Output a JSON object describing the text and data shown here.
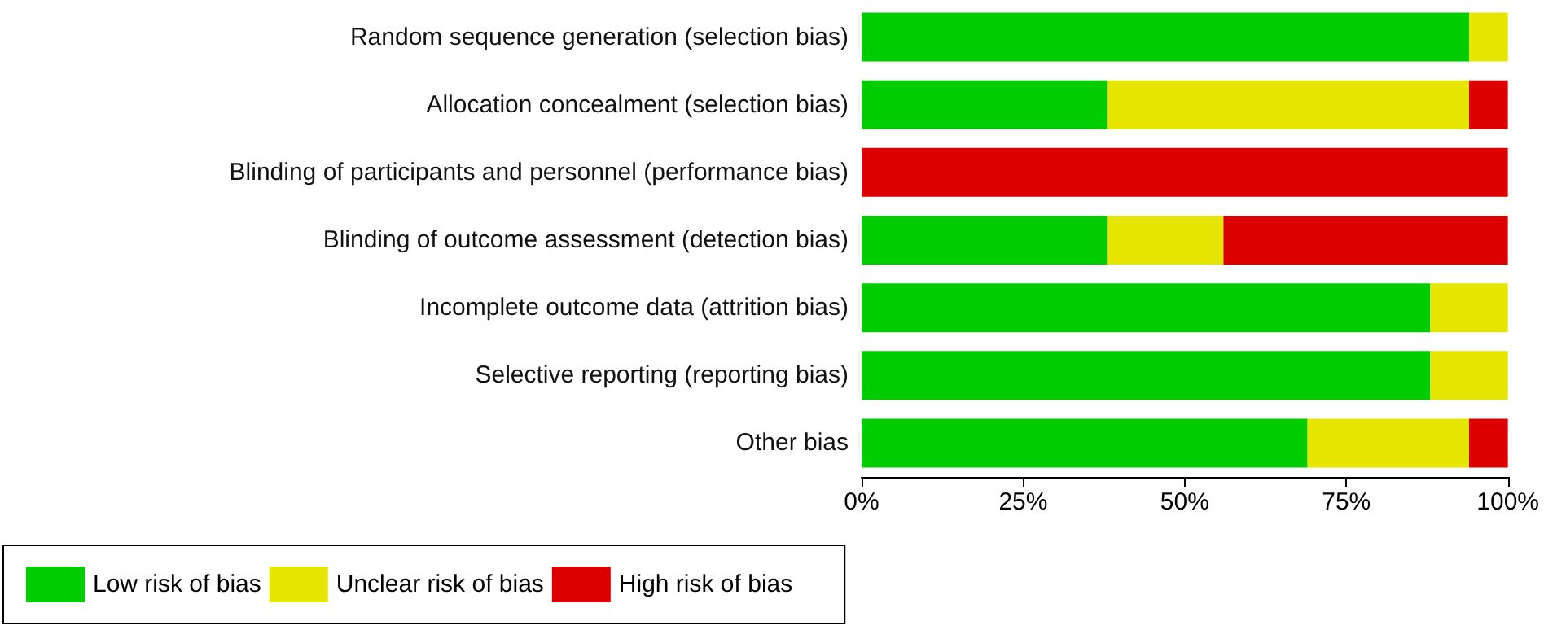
{
  "chart_data": {
    "type": "bar",
    "orientation": "horizontal",
    "stacked": true,
    "categories": [
      "Random sequence generation (selection bias)",
      "Allocation concealment (selection bias)",
      "Blinding of participants and personnel (performance bias)",
      "Blinding of outcome assessment (detection bias)",
      "Incomplete outcome data (attrition bias)",
      "Selective reporting (reporting bias)",
      "Other bias"
    ],
    "series": [
      {
        "name": "Low risk of bias",
        "color": "#00cc00",
        "values": [
          94,
          38,
          0,
          38,
          88,
          88,
          69
        ]
      },
      {
        "name": "Unclear risk of bias",
        "color": "#e5e500",
        "values": [
          6,
          56,
          0,
          18,
          12,
          12,
          25
        ]
      },
      {
        "name": "High risk of bias",
        "color": "#dd0000",
        "values": [
          0,
          6,
          100,
          44,
          0,
          0,
          6
        ]
      }
    ],
    "xlim": [
      0,
      100
    ],
    "xticks": [
      {
        "value": 0,
        "label": "0%"
      },
      {
        "value": 25,
        "label": "25%"
      },
      {
        "value": 50,
        "label": "50%"
      },
      {
        "value": 75,
        "label": "75%"
      },
      {
        "value": 100,
        "label": "100%"
      }
    ],
    "grid": false,
    "legend": "bottom"
  }
}
